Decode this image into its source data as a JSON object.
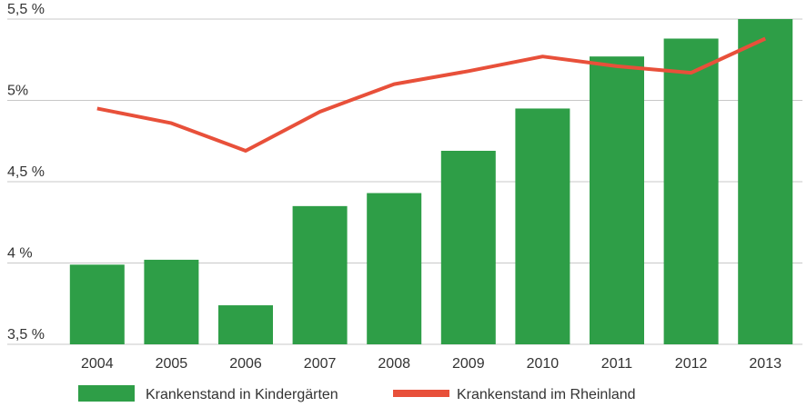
{
  "chart_data": {
    "type": "bar",
    "categories": [
      "2004",
      "2005",
      "2006",
      "2007",
      "2008",
      "2009",
      "2010",
      "2011",
      "2012",
      "2013"
    ],
    "series": [
      {
        "name": "Krankenstand in Kindergärten",
        "type": "bar",
        "color": "#2e9e47",
        "values": [
          3.99,
          4.02,
          3.74,
          4.35,
          4.43,
          4.69,
          4.95,
          5.27,
          5.38,
          5.5
        ]
      },
      {
        "name": "Krankenstand im Rheinland",
        "type": "line",
        "color": "#e8503a",
        "values": [
          4.95,
          4.86,
          4.69,
          4.93,
          5.1,
          5.18,
          5.27,
          5.21,
          5.17,
          5.38
        ]
      }
    ],
    "ylim": [
      3.5,
      5.5
    ],
    "yticks": [
      {
        "value": 3.5,
        "label": "3,5 %"
      },
      {
        "value": 4.0,
        "label": "4 %"
      },
      {
        "value": 4.5,
        "label": "4,5 %"
      },
      {
        "value": 5.0,
        "label": "5%"
      },
      {
        "value": 5.5,
        "label": "5,5 %"
      }
    ],
    "grid": true,
    "legend_position": "bottom",
    "title": "",
    "xlabel": "",
    "ylabel": ""
  }
}
